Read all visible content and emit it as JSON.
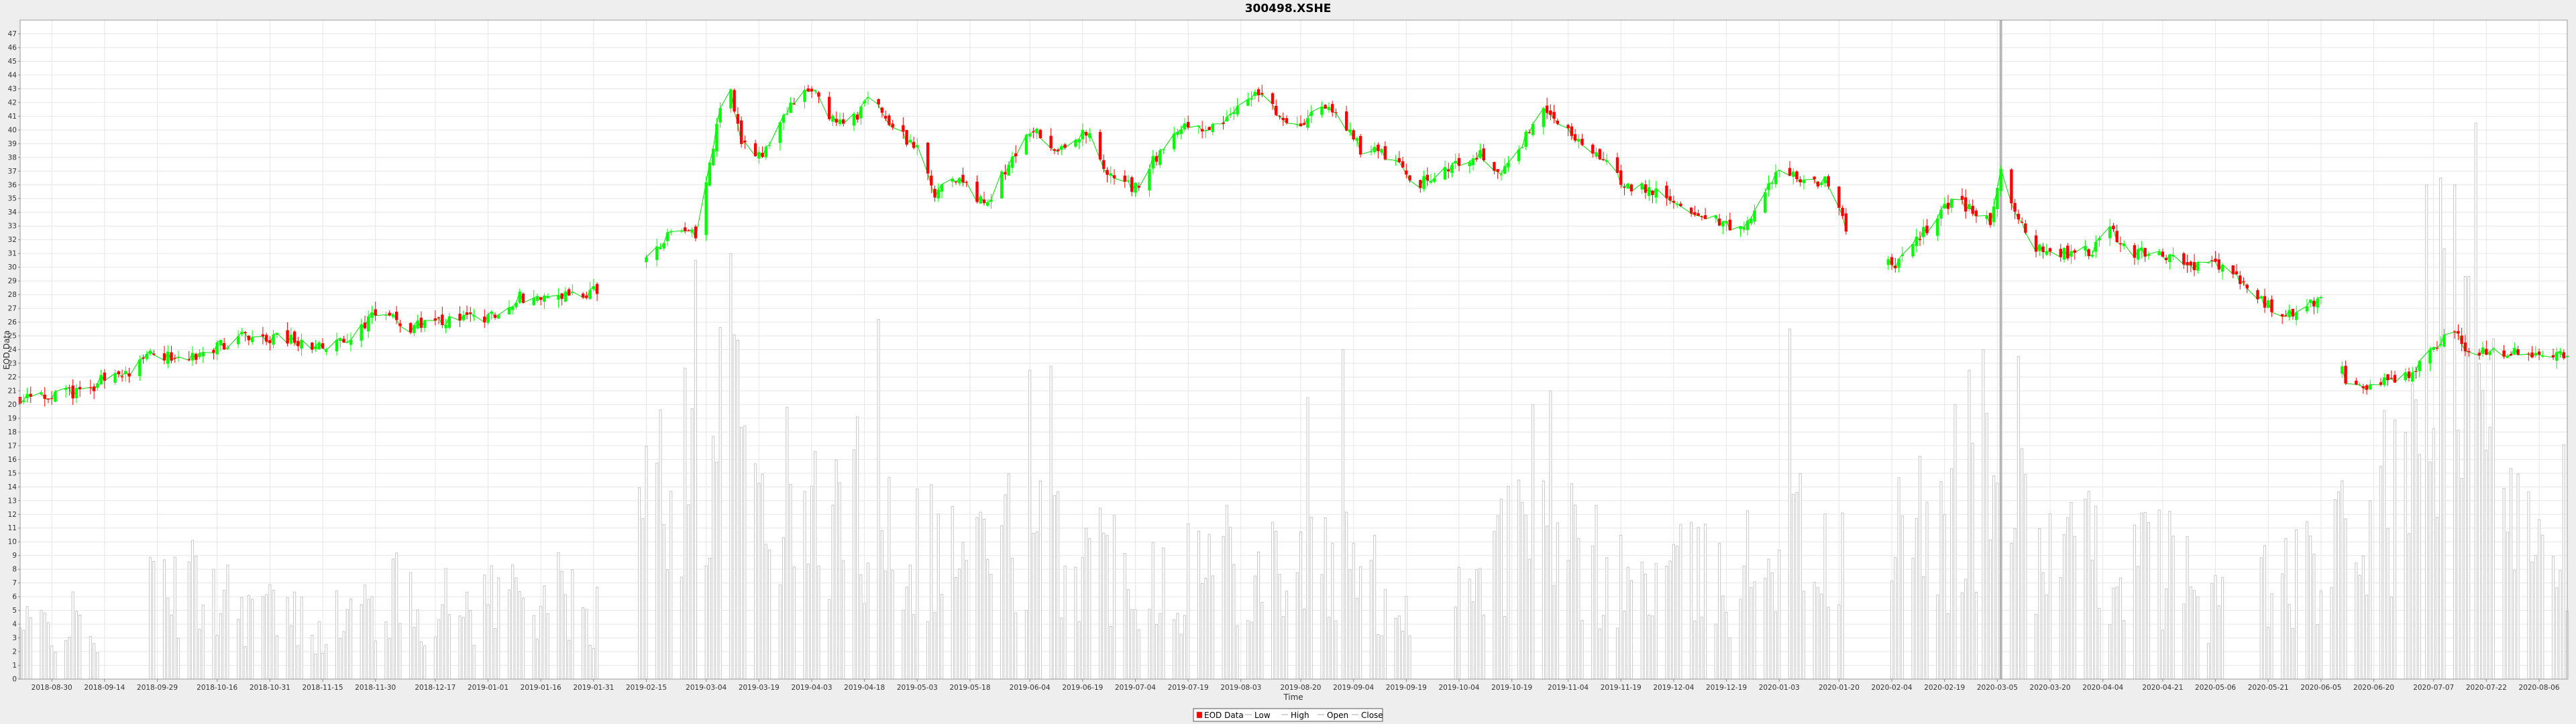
{
  "colors": {
    "up": "#00ff00",
    "down": "#ff0000",
    "volume": "#c8c8c8",
    "close_line": "#00dd00",
    "grid": "#e6e6e6",
    "plot_bg": "#ffffff",
    "page_bg": "#eeeeee"
  },
  "chart_data": {
    "type": "candlestick",
    "title": "300498.XSHE",
    "xlabel": "Time",
    "ylabel": "EOD Data",
    "ylim": [
      0,
      48
    ],
    "xlim": [
      "2018-08-21",
      "2020-08-14"
    ],
    "grid": true,
    "legend_position": "bottom-center",
    "y_ticks": [
      "0",
      "1",
      "2",
      "3",
      "4",
      "5",
      "6",
      "7",
      "8",
      "9",
      "10",
      "11",
      "12",
      "13",
      "14",
      "15",
      "16",
      "17",
      "18",
      "19",
      "20",
      "21",
      "22",
      "23",
      "24",
      "25",
      "26",
      "27",
      "28",
      "29",
      "30",
      "31",
      "32",
      "33",
      "34",
      "35",
      "36",
      "37",
      "38",
      "39",
      "40",
      "41",
      "42",
      "43",
      "44",
      "45",
      "46",
      "47"
    ],
    "x_ticks": [
      "2018-08-30",
      "2018-09-14",
      "2018-09-29",
      "2018-10-16",
      "2018-10-31",
      "2018-11-15",
      "2018-11-30",
      "2018-12-17",
      "2019-01-01",
      "2019-01-16",
      "2019-01-31",
      "2019-02-15",
      "2019-03-04",
      "2019-03-19",
      "2019-04-03",
      "2019-04-18",
      "2019-05-03",
      "2019-05-18",
      "2019-06-04",
      "2019-06-19",
      "2019-07-04",
      "2019-07-19",
      "2019-08-03",
      "2019-08-20",
      "2019-09-04",
      "2019-09-19",
      "2019-10-04",
      "2019-10-19",
      "2019-11-04",
      "2019-11-19",
      "2019-12-04",
      "2019-12-19",
      "2020-01-03",
      "2020-01-20",
      "2020-02-04",
      "2020-02-19",
      "2020-03-05",
      "2020-03-20",
      "2020-04-04",
      "2020-04-21",
      "2020-05-06",
      "2020-05-21",
      "2020-06-05",
      "2020-06-20",
      "2020-07-07",
      "2020-07-22",
      "2020-08-06"
    ],
    "legend": [
      "EOD Data",
      "Low",
      "High",
      "Open",
      "Close"
    ],
    "price_anchors": [
      [
        "2018-08-21",
        20.3
      ],
      [
        "2018-09-01",
        20.8
      ],
      [
        "2018-09-10",
        21.0
      ],
      [
        "2018-09-14",
        22.0
      ],
      [
        "2018-09-21",
        22.4
      ],
      [
        "2018-09-27",
        23.7
      ],
      [
        "2018-10-05",
        23.3
      ],
      [
        "2018-10-15",
        24.0
      ],
      [
        "2018-10-22",
        25.0
      ],
      [
        "2018-10-31",
        24.9
      ],
      [
        "2018-11-08",
        24.6
      ],
      [
        "2018-11-16",
        24.0
      ],
      [
        "2018-11-25",
        25.4
      ],
      [
        "2018-12-01",
        26.8
      ],
      [
        "2018-12-10",
        25.6
      ],
      [
        "2018-12-20",
        26.0
      ],
      [
        "2019-01-02",
        26.4
      ],
      [
        "2019-01-10",
        27.8
      ],
      [
        "2019-01-20",
        27.8
      ],
      [
        "2019-01-31",
        28.2
      ],
      [
        "2019-02-08",
        28.1
      ],
      [
        "2019-02-15",
        30.5
      ],
      [
        "2019-02-22",
        32.8
      ],
      [
        "2019-03-01",
        32.5
      ],
      [
        "2019-03-06",
        38.5
      ],
      [
        "2019-03-10",
        44.5
      ],
      [
        "2019-03-14",
        39.0
      ],
      [
        "2019-03-20",
        38.0
      ],
      [
        "2019-03-28",
        42.0
      ],
      [
        "2019-04-03",
        43.0
      ],
      [
        "2019-04-10",
        40.5
      ],
      [
        "2019-04-15",
        40.8
      ],
      [
        "2019-04-20",
        42.5
      ],
      [
        "2019-04-26",
        40.2
      ],
      [
        "2019-05-03",
        38.5
      ],
      [
        "2019-05-08",
        35.5
      ],
      [
        "2019-05-15",
        36.5
      ],
      [
        "2019-05-22",
        34.5
      ],
      [
        "2019-05-30",
        38.0
      ],
      [
        "2019-06-05",
        40.0
      ],
      [
        "2019-06-12",
        38.5
      ],
      [
        "2019-06-20",
        40.0
      ],
      [
        "2019-06-27",
        36.5
      ],
      [
        "2019-07-04",
        35.8
      ],
      [
        "2019-07-11",
        38.5
      ],
      [
        "2019-07-19",
        40.3
      ],
      [
        "2019-07-26",
        40.2
      ],
      [
        "2019-08-03",
        42.0
      ],
      [
        "2019-08-08",
        42.8
      ],
      [
        "2019-08-14",
        41.0
      ],
      [
        "2019-08-20",
        40.2
      ],
      [
        "2019-08-26",
        42.0
      ],
      [
        "2019-09-01",
        40.5
      ],
      [
        "2019-09-06",
        38.6
      ],
      [
        "2019-09-12",
        38.4
      ],
      [
        "2019-09-18",
        37.4
      ],
      [
        "2019-09-22",
        36.0
      ],
      [
        "2019-10-04",
        37.5
      ],
      [
        "2019-10-10",
        38.2
      ],
      [
        "2019-10-16",
        37.0
      ],
      [
        "2019-10-22",
        39.0
      ],
      [
        "2019-10-28",
        41.7
      ],
      [
        "2019-11-04",
        40.0
      ],
      [
        "2019-11-10",
        38.8
      ],
      [
        "2019-11-19",
        36.2
      ],
      [
        "2019-11-28",
        35.5
      ],
      [
        "2019-12-04",
        35.0
      ],
      [
        "2019-12-08",
        33.5
      ],
      [
        "2019-12-14",
        33.8
      ],
      [
        "2019-12-22",
        32.8
      ],
      [
        "2019-12-28",
        34.0
      ],
      [
        "2020-01-03",
        37.5
      ],
      [
        "2020-01-10",
        36.0
      ],
      [
        "2020-01-17",
        36.2
      ],
      [
        "2020-01-22",
        33.0
      ],
      [
        "2020-02-04",
        30.0
      ],
      [
        "2020-02-10",
        31.5
      ],
      [
        "2020-02-16",
        33.5
      ],
      [
        "2020-02-22",
        35.0
      ],
      [
        "2020-02-28",
        34.0
      ],
      [
        "2020-03-03",
        33.5
      ],
      [
        "2020-03-06",
        37.5
      ],
      [
        "2020-03-10",
        34.0
      ],
      [
        "2020-03-16",
        31.5
      ],
      [
        "2020-03-24",
        31.0
      ],
      [
        "2020-04-01",
        31.2
      ],
      [
        "2020-04-06",
        32.8
      ],
      [
        "2020-04-12",
        31.0
      ],
      [
        "2020-04-21",
        31.0
      ],
      [
        "2020-04-27",
        30.0
      ],
      [
        "2020-05-06",
        30.3
      ],
      [
        "2020-05-15",
        28.5
      ],
      [
        "2020-05-22",
        27.0
      ],
      [
        "2020-05-28",
        26.5
      ],
      [
        "2020-06-03",
        27.5
      ],
      [
        "2020-06-05",
        27.6
      ],
      [
        "2020-06-12",
        21.5
      ],
      [
        "2020-06-20",
        21.5
      ],
      [
        "2020-06-30",
        22.0
      ],
      [
        "2020-07-07",
        24.0
      ],
      [
        "2020-07-12",
        25.8
      ],
      [
        "2020-07-16",
        24.2
      ],
      [
        "2020-07-22",
        23.6
      ],
      [
        "2020-07-30",
        24.0
      ],
      [
        "2020-08-06",
        23.2
      ],
      [
        "2020-08-14",
        23.8
      ]
    ],
    "price_gaps": [
      [
        "2019-02-04",
        "2019-02-14"
      ],
      [
        "2020-01-23",
        "2020-02-02"
      ],
      [
        "2020-06-06",
        "2020-06-10"
      ]
    ],
    "volume_level_anchors": [
      [
        "2018-08-21",
        4
      ],
      [
        "2018-09-01",
        5
      ],
      [
        "2018-09-15",
        4
      ],
      [
        "2018-09-25",
        7
      ],
      [
        "2018-10-15",
        8
      ],
      [
        "2018-11-05",
        5
      ],
      [
        "2018-11-20",
        5
      ],
      [
        "2018-12-05",
        7
      ],
      [
        "2018-12-20",
        6
      ],
      [
        "2019-01-15",
        8
      ],
      [
        "2019-01-31",
        5
      ],
      [
        "2019-02-15",
        15
      ],
      [
        "2019-03-05",
        20
      ],
      [
        "2019-03-15",
        19
      ],
      [
        "2019-04-01",
        13
      ],
      [
        "2019-04-15",
        15
      ],
      [
        "2019-05-01",
        12
      ],
      [
        "2019-05-15",
        11
      ],
      [
        "2019-06-01",
        12
      ],
      [
        "2019-06-15",
        11
      ],
      [
        "2019-07-01",
        10
      ],
      [
        "2019-07-15",
        9
      ],
      [
        "2019-08-01",
        11
      ],
      [
        "2019-08-20",
        10
      ],
      [
        "2019-09-05",
        9
      ],
      [
        "2019-09-20",
        6
      ],
      [
        "2019-10-05",
        9
      ],
      [
        "2019-10-20",
        12
      ],
      [
        "2019-11-05",
        11
      ],
      [
        "2019-11-20",
        8
      ],
      [
        "2019-12-05",
        9
      ],
      [
        "2019-12-20",
        8
      ],
      [
        "2020-01-05",
        13
      ],
      [
        "2020-01-20",
        9
      ],
      [
        "2020-02-05",
        12
      ],
      [
        "2020-02-20",
        13
      ],
      [
        "2020-03-05",
        15
      ],
      [
        "2020-03-20",
        11
      ],
      [
        "2020-04-05",
        10
      ],
      [
        "2020-04-20",
        10
      ],
      [
        "2020-05-05",
        7
      ],
      [
        "2020-05-20",
        8
      ],
      [
        "2020-06-05",
        9
      ],
      [
        "2020-06-20",
        14
      ],
      [
        "2020-07-01",
        16
      ],
      [
        "2020-07-10",
        24
      ],
      [
        "2020-07-20",
        22
      ],
      [
        "2020-08-01",
        18
      ],
      [
        "2020-08-14",
        14
      ]
    ],
    "volume_gaps": [
      [
        "2018-09-13",
        "2018-09-26"
      ],
      [
        "2019-02-02",
        "2019-02-12"
      ],
      [
        "2019-09-22",
        "2019-10-02"
      ],
      [
        "2020-01-22",
        "2020-02-03"
      ],
      [
        "2020-05-09",
        "2020-05-18"
      ]
    ],
    "volume_spikes": [
      [
        "2019-03-01",
        30.5
      ],
      [
        "2019-03-11",
        31.0
      ],
      [
        "2019-04-22",
        26.2
      ],
      [
        "2019-06-04",
        22.5
      ],
      [
        "2019-06-10",
        22.8
      ],
      [
        "2019-08-22",
        20.5
      ],
      [
        "2019-09-01",
        24.0
      ],
      [
        "2019-10-25",
        20.0
      ],
      [
        "2019-10-30",
        21.0
      ],
      [
        "2020-01-06",
        25.5
      ],
      [
        "2020-02-22",
        20.0
      ],
      [
        "2020-02-26",
        22.5
      ],
      [
        "2020-03-06",
        48.0
      ],
      [
        "2020-03-01",
        24.0
      ],
      [
        "2020-03-11",
        23.5
      ],
      [
        "2020-07-05",
        36.0
      ],
      [
        "2020-07-09",
        36.5
      ],
      [
        "2020-07-13",
        36.0
      ],
      [
        "2020-07-19",
        40.5
      ]
    ],
    "marker_line_date": "2020-03-06"
  }
}
